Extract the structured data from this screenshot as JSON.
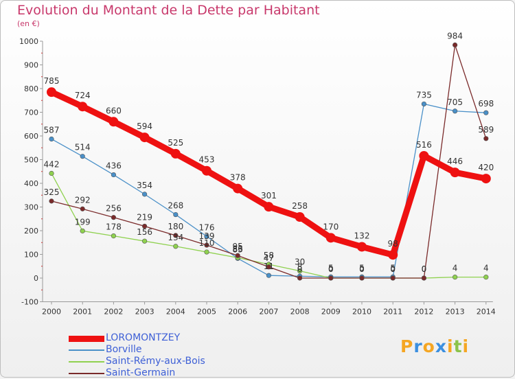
{
  "title": "Evolution du Montant de la Dette par Habitant",
  "unit": "(en €)",
  "logo": {
    "text": "Proxiti",
    "letters": [
      {
        "ch": "P",
        "color": "#f5a623"
      },
      {
        "ch": "r",
        "color": "#3b8fe0"
      },
      {
        "ch": "o",
        "color": "#f5a623"
      },
      {
        "ch": "x",
        "color": "#3b8fe0"
      },
      {
        "ch": "i",
        "color": "#f5a623"
      },
      {
        "ch": "t",
        "color": "#8bc34a"
      },
      {
        "ch": "i",
        "color": "#f5a623"
      }
    ]
  },
  "chart_data": {
    "type": "line",
    "title": "Evolution du Montant de la Dette par Habitant",
    "ylabel": "(en €)",
    "x": [
      "2000",
      "2001",
      "2002",
      "2003",
      "2004",
      "2005",
      "2006",
      "2007",
      "2008",
      "2009",
      "2010",
      "2011",
      "2012",
      "2013",
      "2014"
    ],
    "ylim": [
      -100,
      1000
    ],
    "yticks": [
      -100,
      0,
      100,
      200,
      300,
      400,
      500,
      600,
      700,
      800,
      900,
      1000
    ],
    "grid": false,
    "legend_position": "bottom-left",
    "series": [
      {
        "name": "LOROMONTZEY",
        "color": "#ee1111",
        "emphasis": true,
        "values": [
          785,
          724,
          660,
          594,
          525,
          453,
          378,
          301,
          258,
          170,
          132,
          98,
          516,
          446,
          420
        ]
      },
      {
        "name": "Borville",
        "color": "#4a90c8",
        "emphasis": false,
        "values": [
          587,
          514,
          436,
          354,
          268,
          176,
          83,
          11,
          8,
          5,
          5,
          5,
          735,
          705,
          698
        ]
      },
      {
        "name": "Saint-Rémy-aux-Bois",
        "color": "#8fd14f",
        "emphasis": false,
        "values": [
          442,
          199,
          178,
          156,
          134,
          110,
          86,
          58,
          30,
          0,
          0,
          0,
          0,
          4,
          4
        ]
      },
      {
        "name": "Saint-Germain",
        "color": "#7a2a2a",
        "emphasis": false,
        "values": [
          325,
          292,
          256,
          219,
          180,
          139,
          95,
          47,
          0,
          0,
          0,
          0,
          0,
          984,
          589
        ]
      }
    ]
  }
}
